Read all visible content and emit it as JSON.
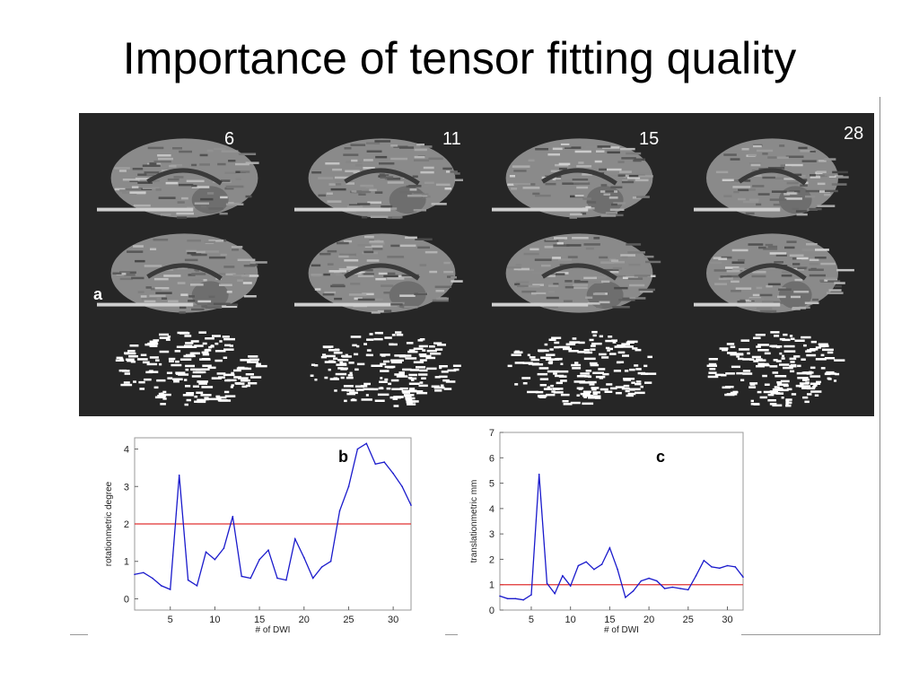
{
  "slide": {
    "title": "Importance of tensor fitting quality"
  },
  "figure": {
    "panel_a_label": "a",
    "column_labels": [
      "6",
      "11",
      "15",
      "28"
    ]
  },
  "chart_data": [
    {
      "type": "line",
      "panel_label": "b",
      "xlabel": "# of DWI",
      "ylabel": "rotationmetric degree",
      "xlim": [
        1,
        32
      ],
      "ylim": [
        -0.3,
        4.3
      ],
      "xticks": [
        5,
        10,
        15,
        20,
        25,
        30
      ],
      "yticks": [
        0,
        1,
        2,
        3,
        4
      ],
      "grid": false,
      "threshold": {
        "value": 2,
        "color": "#e03030"
      },
      "series": [
        {
          "color": "#1a1acc",
          "x": [
            1,
            2,
            3,
            4,
            5,
            6,
            7,
            8,
            9,
            10,
            11,
            12,
            13,
            14,
            15,
            16,
            17,
            18,
            19,
            20,
            21,
            22,
            23,
            24,
            25,
            26,
            27,
            28,
            29,
            30,
            31,
            32
          ],
          "y": [
            0.65,
            0.7,
            0.55,
            0.35,
            0.25,
            3.3,
            0.5,
            0.35,
            1.25,
            1.05,
            1.35,
            2.2,
            0.6,
            0.55,
            1.05,
            1.3,
            0.55,
            0.5,
            1.6,
            1.1,
            0.55,
            0.85,
            1.0,
            2.35,
            3.0,
            4.0,
            4.15,
            3.6,
            3.65,
            3.35,
            3.0,
            2.5
          ]
        }
      ]
    },
    {
      "type": "line",
      "panel_label": "c",
      "xlabel": "# of DWI",
      "ylabel": "translationmetric mm",
      "xlim": [
        1,
        32
      ],
      "ylim": [
        0,
        7
      ],
      "xticks": [
        5,
        10,
        15,
        20,
        25,
        30
      ],
      "yticks": [
        0,
        1,
        2,
        3,
        4,
        5,
        6,
        7
      ],
      "grid": false,
      "threshold": {
        "value": 1,
        "color": "#e03030"
      },
      "series": [
        {
          "color": "#1a1acc",
          "x": [
            1,
            2,
            3,
            4,
            5,
            6,
            7,
            8,
            9,
            10,
            11,
            12,
            13,
            14,
            15,
            16,
            17,
            18,
            19,
            20,
            21,
            22,
            23,
            24,
            25,
            26,
            27,
            28,
            29,
            30,
            31,
            32
          ],
          "y": [
            0.55,
            0.45,
            0.45,
            0.4,
            0.6,
            5.35,
            1.05,
            0.65,
            1.35,
            0.95,
            1.75,
            1.9,
            1.6,
            1.8,
            2.45,
            1.6,
            0.5,
            0.75,
            1.15,
            1.25,
            1.15,
            0.85,
            0.9,
            0.85,
            0.8,
            1.35,
            1.95,
            1.7,
            1.65,
            1.75,
            1.7,
            1.3
          ]
        }
      ]
    }
  ]
}
